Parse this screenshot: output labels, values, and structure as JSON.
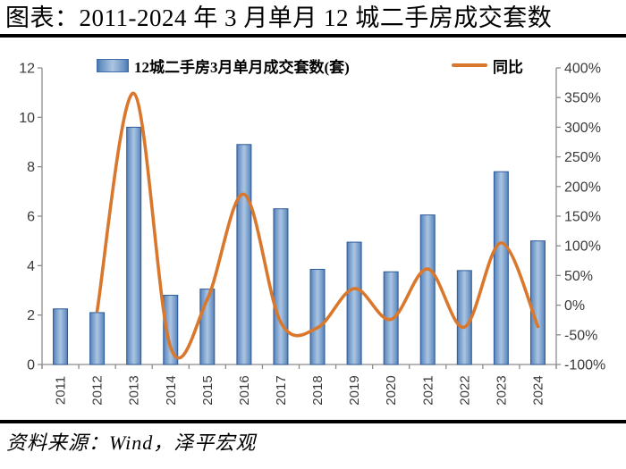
{
  "title": "图表：2011-2024 年 3 月单月 12 城二手房成交套数",
  "source": "资料来源：Wind，泽平宏观",
  "legend": {
    "bar_label": "12城二手房3月单月成交套数(套)",
    "line_label": "同比"
  },
  "colors": {
    "bar_edge": "#4A76AE",
    "bar_center": "#ABC5E2",
    "bar_border": "#2F5D9B",
    "line": "#D9782D",
    "axis": "#8C8C8C",
    "label": "#3A3A3A"
  },
  "chart_data": {
    "type": "bar",
    "subtype": "bar+line combo, dual axis",
    "categories": [
      "2011",
      "2012",
      "2013",
      "2014",
      "2015",
      "2016",
      "2017",
      "2018",
      "2019",
      "2020",
      "2021",
      "2022",
      "2023",
      "2024"
    ],
    "series": [
      {
        "name": "12城二手房3月单月成交套数(套)",
        "type": "bar",
        "axis": "left",
        "values": [
          2.25,
          2.1,
          9.6,
          2.8,
          3.05,
          8.9,
          6.3,
          3.85,
          4.95,
          3.75,
          6.05,
          3.8,
          7.8,
          5.0
        ]
      },
      {
        "name": "同比",
        "type": "line",
        "axis": "right",
        "unit": "%",
        "values": [
          null,
          -10,
          357,
          -71,
          10,
          187,
          -29,
          -38,
          28,
          -24,
          61,
          -37,
          105,
          -36
        ]
      }
    ],
    "left_axis": {
      "min": 0,
      "max": 12,
      "tick_step": 2,
      "tick_labels": [
        "0",
        "2",
        "4",
        "6",
        "8",
        "10",
        "12"
      ]
    },
    "right_axis": {
      "min": -100,
      "max": 400,
      "tick_step": 50,
      "tick_labels": [
        "-100%",
        "-50%",
        "0%",
        "50%",
        "100%",
        "150%",
        "200%",
        "250%",
        "300%",
        "350%",
        "400%"
      ]
    },
    "grid": false,
    "legend_position": "top",
    "line_smooth": true
  }
}
